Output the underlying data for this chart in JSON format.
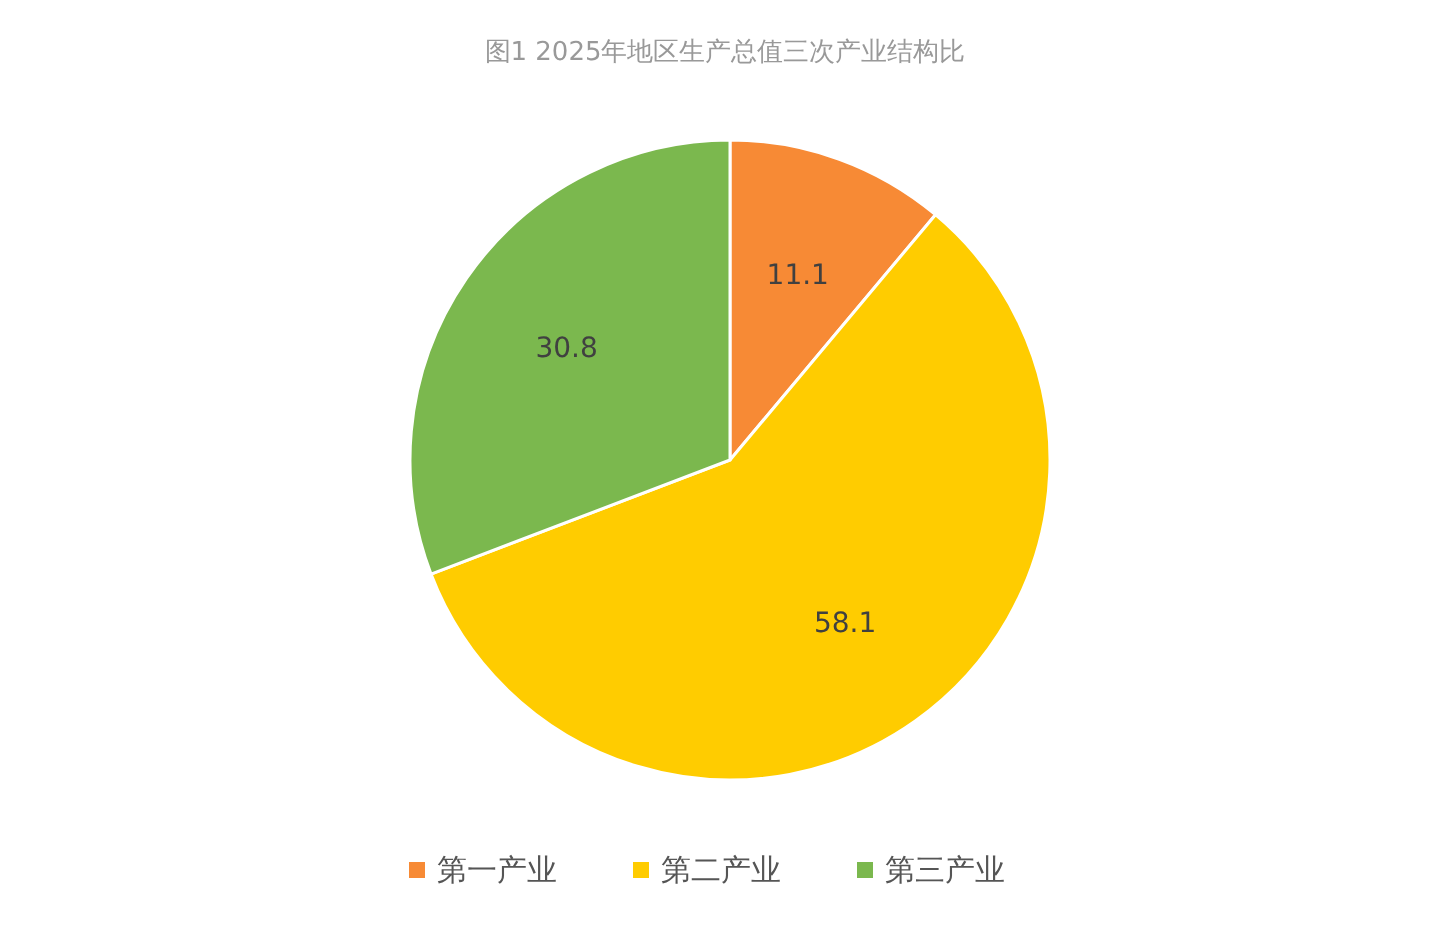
{
  "chart_data": {
    "type": "pie",
    "title": "图1  2025年地区生产总值三次产业结构比",
    "categories": [
      "第一产业",
      "第二产业",
      "第三产业"
    ],
    "values": [
      11.1,
      58.1,
      30.8
    ],
    "colors": [
      "#f78a35",
      "#ffcc00",
      "#7bb84e"
    ],
    "data_labels": true,
    "legend": "bottom"
  }
}
